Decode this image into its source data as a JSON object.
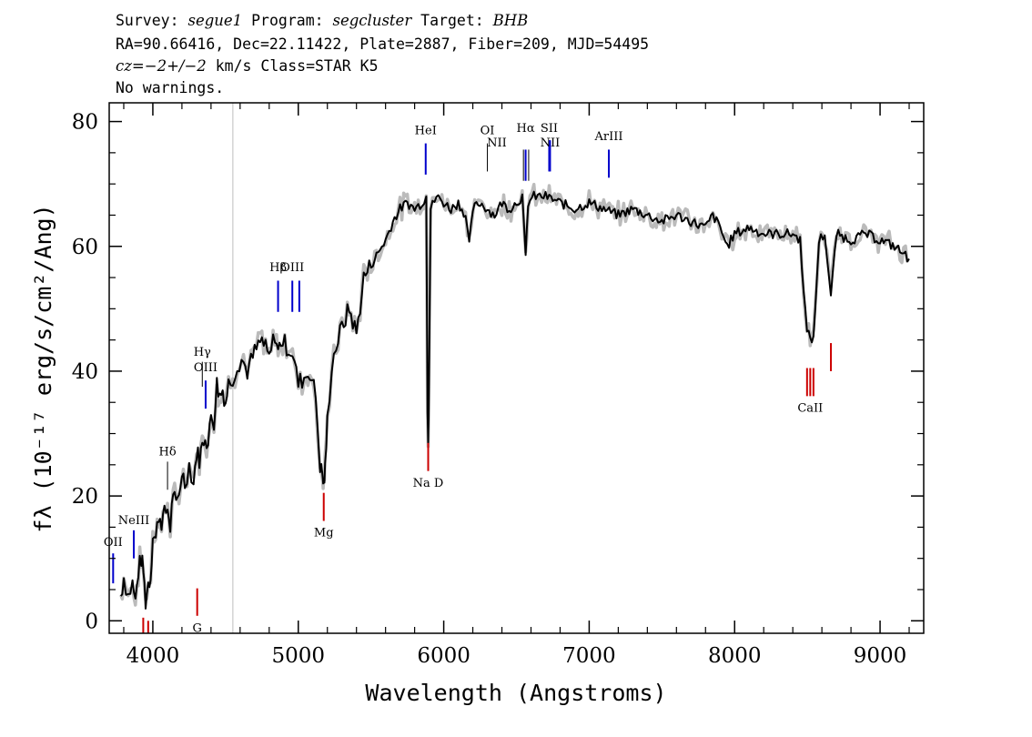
{
  "header": {
    "line1": {
      "survey_label": "Survey: ",
      "survey": "segue1",
      "program_label": " Program: ",
      "program": "segcluster",
      "target_label": " Target: ",
      "target": "BHB"
    },
    "line2": "RA=90.66416, Dec=22.11422, Plate=2887, Fiber=209, MJD=54495",
    "line3": {
      "cz": "cz=−2+/−2",
      "rest": " km/s Class=STAR K5"
    },
    "line4": "No warnings."
  },
  "chart_data": {
    "type": "line",
    "xlabel": "Wavelength (Angstroms)",
    "ylabel": "fλ (10⁻¹⁷ erg/s/cm²/Ang)",
    "xlim": [
      3700,
      9300
    ],
    "ylim": [
      -2,
      83
    ],
    "xticks": [
      4000,
      5000,
      6000,
      7000,
      8000,
      9000
    ],
    "yticks": [
      0,
      20,
      40,
      60,
      80
    ],
    "grid": false,
    "series_colors": {
      "flux": "#000000",
      "error_band": "#bbbbbb",
      "emission": "#0000cc",
      "absorption": "#cc0000",
      "marker": "#c8c8c8"
    },
    "vline_x": 4550,
    "flux_series": {
      "x": [
        3780,
        3800,
        3830,
        3860,
        3880,
        3900,
        3920,
        3935,
        3950,
        3968,
        3985,
        4000,
        4020,
        4040,
        4060,
        4080,
        4101,
        4120,
        4140,
        4160,
        4180,
        4200,
        4220,
        4250,
        4280,
        4300,
        4320,
        4340,
        4360,
        4380,
        4400,
        4420,
        4440,
        4460,
        4480,
        4500,
        4520,
        4550,
        4580,
        4610,
        4650,
        4700,
        4750,
        4800,
        4840,
        4861,
        4880,
        4920,
        4960,
        5000,
        5040,
        5080,
        5120,
        5150,
        5167,
        5175,
        5184,
        5200,
        5230,
        5260,
        5300,
        5350,
        5400,
        5450,
        5500,
        5550,
        5600,
        5650,
        5700,
        5750,
        5800,
        5850,
        5880,
        5889,
        5893,
        5896,
        5910,
        5950,
        6000,
        6050,
        6100,
        6150,
        6175,
        6200,
        6250,
        6300,
        6350,
        6400,
        6450,
        6500,
        6540,
        6563,
        6580,
        6620,
        6700,
        6800,
        6900,
        7000,
        7100,
        7200,
        7300,
        7400,
        7500,
        7600,
        7700,
        7800,
        7850,
        7900,
        7950,
        8000,
        8100,
        8200,
        8300,
        8400,
        8450,
        8498,
        8542,
        8580,
        8620,
        8662,
        8700,
        8800,
        8900,
        9000,
        9100,
        9200
      ],
      "y": [
        4,
        7,
        4,
        6,
        3,
        8,
        10,
        8,
        3,
        6,
        7,
        14,
        13,
        17,
        16,
        17,
        18,
        15,
        21,
        18,
        20,
        24,
        22,
        25,
        22,
        27,
        26,
        28,
        30,
        28,
        33,
        32,
        38,
        36,
        37,
        35,
        38,
        39,
        41,
        42,
        40,
        43,
        45,
        42,
        46,
        43,
        45,
        44,
        43,
        38,
        39,
        40,
        36,
        25,
        23,
        22,
        24,
        32,
        41,
        44,
        47,
        50,
        46,
        55,
        57,
        59,
        61,
        64,
        66,
        67,
        66,
        67,
        68,
        34,
        29,
        33,
        66,
        68,
        67,
        66,
        67,
        65,
        60,
        66,
        67,
        66,
        65,
        67,
        66,
        67,
        68,
        58,
        67,
        68,
        68,
        67,
        66,
        67,
        66,
        65,
        66,
        65,
        64,
        65,
        64,
        63,
        65,
        63,
        60,
        62,
        63,
        62,
        62,
        62,
        61,
        46,
        45,
        61,
        62,
        52,
        62,
        61,
        62,
        61,
        60,
        58
      ]
    },
    "line_markers": [
      {
        "label": "OII",
        "x": 3727,
        "kind": "emission",
        "label_y": 12,
        "y0": 6,
        "y1": 10.8
      },
      {
        "label": "NeIII",
        "x": 3869,
        "kind": "emission",
        "label_y": 15.5,
        "y0": 10,
        "y1": 14.5
      },
      {
        "label": "Hδ",
        "x": 4101,
        "kind": "thin",
        "label_y": 26.5,
        "y0": 21,
        "y1": 25.5
      },
      {
        "label": "Hγ",
        "x": 4340,
        "kind": "thin",
        "label_y": 42.5,
        "y0": 37.5,
        "y1": 41.5
      },
      {
        "label": "OIII",
        "x": 4363,
        "kind": "emission",
        "label_y": 40,
        "y0": 34,
        "y1": 38.5
      },
      {
        "label": "Hβ",
        "x": 4861,
        "kind": "emission",
        "label_y": 56,
        "y0": 49.5,
        "y1": 54.5
      },
      {
        "label": "OIII",
        "x": 4959,
        "kind": "emission",
        "label_y": 56,
        "y0": 49.5,
        "y1": 54.5
      },
      {
        "label": "",
        "x": 5007,
        "kind": "emission",
        "label_y": 56,
        "y0": 49.5,
        "y1": 54.5
      },
      {
        "label": "HeI",
        "x": 5876,
        "kind": "emission",
        "label_y": 78,
        "y0": 71.5,
        "y1": 76.5
      },
      {
        "label": "OI",
        "x": 6300,
        "kind": "thin",
        "label_y": 78,
        "y0": 72,
        "y1": 76.5
      },
      {
        "label": "NII",
        "x": 6365,
        "kind": "none",
        "label_y": 76,
        "y0": 0,
        "y1": 0
      },
      {
        "label": "Hα",
        "x": 6563,
        "kind": "emission",
        "label_y": 78.3,
        "y0": 70.5,
        "y1": 75.5
      },
      {
        "label": "",
        "x": 6548,
        "kind": "thin",
        "label_y": 0,
        "y0": 70.5,
        "y1": 75.5
      },
      {
        "label": "",
        "x": 6584,
        "kind": "thin",
        "label_y": 0,
        "y0": 70.5,
        "y1": 75.5
      },
      {
        "label": "SII",
        "x": 6725,
        "kind": "emission",
        "label_y": 78.3,
        "y0": 72,
        "y1": 77
      },
      {
        "label": "NII",
        "x": 6731,
        "kind": "emission",
        "label_y": 76,
        "y0": 72,
        "y1": 77
      },
      {
        "label": "ArIII",
        "x": 7135,
        "kind": "emission",
        "label_y": 77,
        "y0": 71,
        "y1": 75.5
      },
      {
        "label": "Na D",
        "x": 5893,
        "kind": "absorption",
        "label_y": 21.5,
        "y0": 24,
        "y1": 28.5
      },
      {
        "label": "Mg",
        "x": 5175,
        "kind": "absorption",
        "label_y": 13.5,
        "y0": 16,
        "y1": 20.5
      },
      {
        "label": "CaII",
        "x": 8520,
        "kind": "absorption",
        "label_y": 33.5,
        "y0": 36,
        "y1": 40.5
      },
      {
        "label": "",
        "x": 8498,
        "kind": "absorption",
        "label_y": 0,
        "y0": 36,
        "y1": 40.5
      },
      {
        "label": "",
        "x": 8542,
        "kind": "absorption",
        "label_y": 0,
        "y0": 36,
        "y1": 40.5
      },
      {
        "label": "",
        "x": 8662,
        "kind": "absorption",
        "label_y": 0,
        "y0": 40,
        "y1": 44.5
      },
      {
        "label": "G",
        "x": 4305,
        "kind": "absorption",
        "label_y": -1.8,
        "y0": 0.8,
        "y1": 5.2
      },
      {
        "label": "",
        "x": 3934,
        "kind": "absorption",
        "label_y": 0,
        "y0": -2,
        "y1": 0.5
      },
      {
        "label": "",
        "x": 3968,
        "kind": "absorption",
        "label_y": 0,
        "y0": -2,
        "y1": 0
      }
    ]
  }
}
